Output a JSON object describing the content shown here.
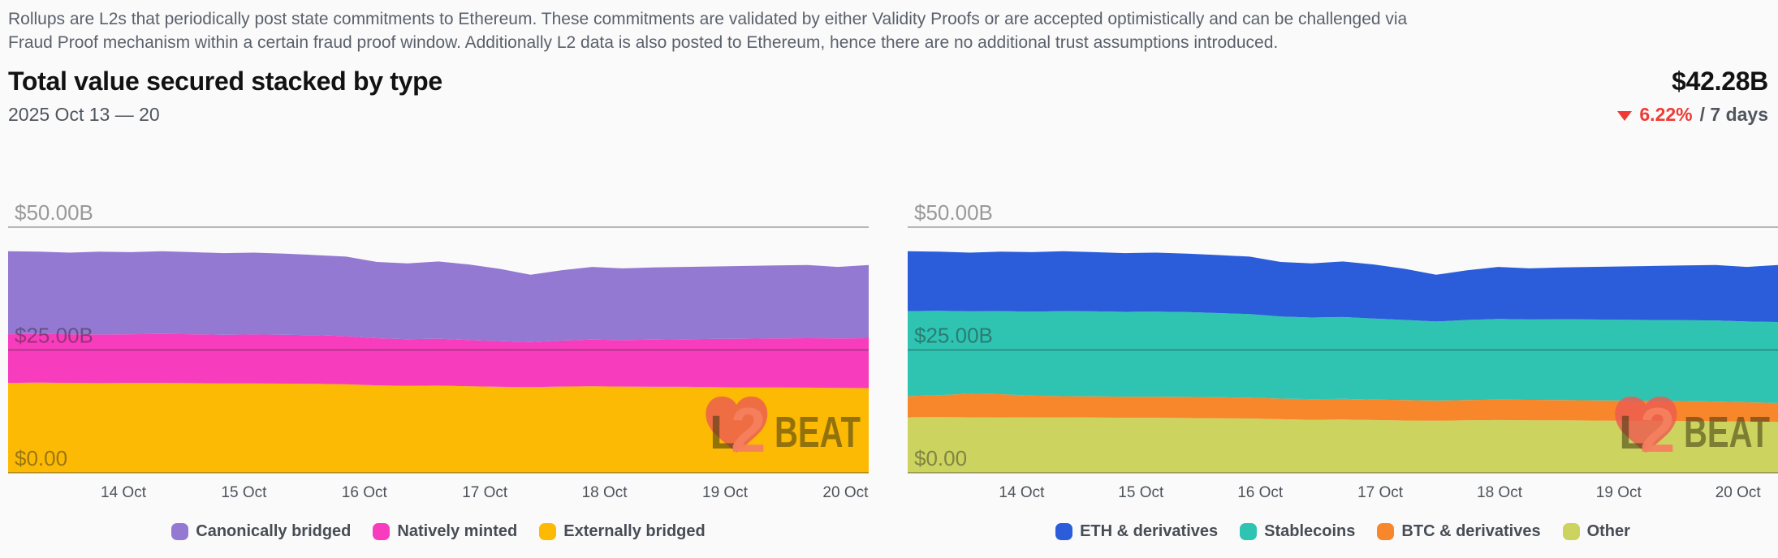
{
  "description": {
    "lines": [
      "Rollups are L2s that periodically post state commitments to Ethereum. These commitments are validated by either Validity Proofs or are accepted optimistically and can be challenged via",
      "Fraud Proof mechanism within a certain fraud proof window. Additionally L2 data is also posted to Ethereum, hence there are no additional trust assumptions introduced."
    ]
  },
  "header": {
    "title": "Total value secured stacked by type",
    "total_value": "$42.28B",
    "date_range": "2025 Oct 13 — 20",
    "change_pct": "6.22%",
    "change_suffix": "/ 7 days",
    "change_direction": "down",
    "change_color": "#ee3b35"
  },
  "watermark": {
    "text": "L2BEAT"
  },
  "chart_data": [
    {
      "type": "stacked_area",
      "position": "left",
      "ylim": [
        0,
        50
      ],
      "unit": "$B",
      "grid": true,
      "legend_position": "bottom",
      "y_ticks": [
        {
          "label": "$50.00B",
          "value": 50
        },
        {
          "label": "$25.00B",
          "value": 25
        },
        {
          "label": "$0.00",
          "value": 0
        }
      ],
      "x_ticks": [
        {
          "label": "14 Oct",
          "f": 0.134
        },
        {
          "label": "15 Oct",
          "f": 0.274
        },
        {
          "label": "16 Oct",
          "f": 0.414
        },
        {
          "label": "17 Oct",
          "f": 0.554
        },
        {
          "label": "18 Oct",
          "f": 0.693
        },
        {
          "label": "19 Oct",
          "f": 0.833
        },
        {
          "label": "20 Oct",
          "f": 0.973
        }
      ],
      "x_range_label": "2025 Oct 13 — 20",
      "series": [
        {
          "name": "Canonically bridged",
          "color": "#9379d2",
          "values": [
            16.9,
            16.75,
            16.6,
            16.85,
            16.7,
            16.85,
            16.7,
            16.6,
            16.65,
            16.5,
            16.3,
            16.2,
            15.5,
            15.4,
            15.7,
            15.4,
            14.7,
            13.7,
            14.3,
            14.8,
            14.6,
            14.7,
            14.7,
            14.75,
            14.8,
            14.85,
            14.9,
            14.55,
            14.88
          ]
        },
        {
          "name": "Natively minted",
          "color": "#f73cbd",
          "values": [
            9.9,
            9.9,
            9.9,
            9.9,
            9.9,
            9.95,
            9.95,
            9.9,
            9.95,
            9.95,
            9.9,
            9.8,
            9.6,
            9.5,
            9.55,
            9.4,
            9.3,
            9.15,
            9.35,
            9.5,
            9.45,
            9.6,
            9.7,
            9.8,
            9.9,
            9.95,
            10.05,
            10.05,
            10.15
          ]
        },
        {
          "name": "Externally bridged",
          "color": "#fcba04",
          "values": [
            18.3,
            18.35,
            18.3,
            18.25,
            18.3,
            18.3,
            18.25,
            18.2,
            18.2,
            18.15,
            18.1,
            18.0,
            17.8,
            17.7,
            17.75,
            17.6,
            17.5,
            17.45,
            17.55,
            17.6,
            17.55,
            17.5,
            17.5,
            17.45,
            17.4,
            17.4,
            17.35,
            17.3,
            17.25
          ]
        }
      ]
    },
    {
      "type": "stacked_area",
      "position": "right",
      "ylim": [
        0,
        50
      ],
      "unit": "$B",
      "grid": true,
      "legend_position": "bottom",
      "y_ticks": [
        {
          "label": "$50.00B",
          "value": 50
        },
        {
          "label": "$25.00B",
          "value": 25
        },
        {
          "label": "$0.00",
          "value": 0
        }
      ],
      "x_ticks": [
        {
          "label": "14 Oct",
          "f": 0.131
        },
        {
          "label": "15 Oct",
          "f": 0.268
        },
        {
          "label": "16 Oct",
          "f": 0.405
        },
        {
          "label": "17 Oct",
          "f": 0.543
        },
        {
          "label": "18 Oct",
          "f": 0.68
        },
        {
          "label": "19 Oct",
          "f": 0.817
        },
        {
          "label": "20 Oct",
          "f": 0.954
        }
      ],
      "x_range_label": "2025 Oct 13 — 20",
      "series": [
        {
          "name": "ETH & derivatives",
          "color": "#2b5cd9",
          "values": [
            12.2,
            12.05,
            11.95,
            12.1,
            12.1,
            12.2,
            12.05,
            11.95,
            12.0,
            11.9,
            11.8,
            11.7,
            11.1,
            11.0,
            11.3,
            11.0,
            10.4,
            9.5,
            10.1,
            10.6,
            10.4,
            10.55,
            10.7,
            10.85,
            11.0,
            11.15,
            11.3,
            11.1,
            11.58
          ]
        },
        {
          "name": "Stablecoins",
          "color": "#2fc4b2",
          "values": [
            17.3,
            17.15,
            16.75,
            16.9,
            17.1,
            17.3,
            17.3,
            17.25,
            17.3,
            17.25,
            17.1,
            17.0,
            16.7,
            16.6,
            16.65,
            16.5,
            16.3,
            16.1,
            16.3,
            16.4,
            16.35,
            16.45,
            16.45,
            16.45,
            16.45,
            16.45,
            16.5,
            16.45,
            16.5
          ]
        },
        {
          "name": "BTC & derivatives",
          "color": "#f8862b",
          "values": [
            4.3,
            4.45,
            4.8,
            4.75,
            4.4,
            4.3,
            4.3,
            4.3,
            4.3,
            4.3,
            4.3,
            4.25,
            4.2,
            4.2,
            4.2,
            4.15,
            4.15,
            4.1,
            4.1,
            4.15,
            4.15,
            4.12,
            4.1,
            4.1,
            4.07,
            4.05,
            4.0,
            3.9,
            3.8
          ]
        },
        {
          "name": "Other",
          "color": "#ccd35e",
          "values": [
            11.3,
            11.35,
            11.3,
            11.25,
            11.3,
            11.3,
            11.25,
            11.2,
            11.2,
            11.15,
            11.1,
            11.05,
            10.9,
            10.8,
            10.85,
            10.75,
            10.65,
            10.6,
            10.7,
            10.75,
            10.7,
            10.68,
            10.65,
            10.6,
            10.58,
            10.55,
            10.5,
            10.45,
            10.4
          ]
        }
      ]
    }
  ]
}
